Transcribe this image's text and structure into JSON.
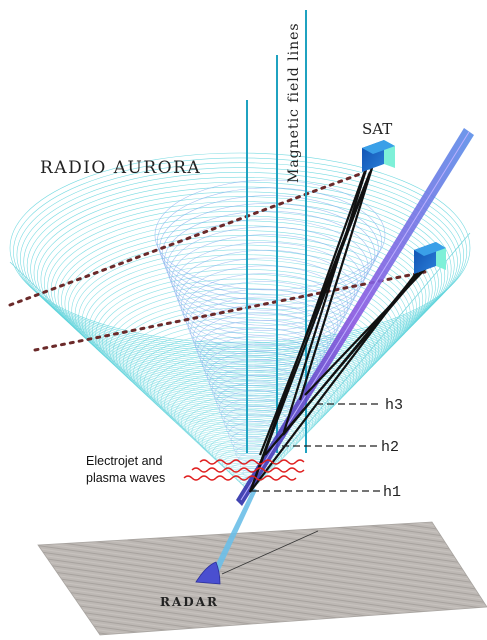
{
  "labels": {
    "radio_aurora": "RADIO AURORA",
    "magnetic_field_lines": "Magnetic field lines",
    "sat": "SAT",
    "electrojet_line1": "Electrojet and",
    "electrojet_line2": "plasma waves",
    "radar": "RADAR",
    "h1": "h1",
    "h2": "h2",
    "h3": "h3"
  },
  "colors": {
    "cone": "#5fd4dc",
    "cone_inner": "#7fa8ec",
    "field_line": "#1fa2c0",
    "ray": "#111111",
    "dotted_line": "#6b2a2a",
    "wave": "#e02020",
    "ground": "#b8b4b0",
    "radar": "#4a4fd0",
    "beam": "#7c4ed8",
    "satellite": "#1e64c8"
  }
}
